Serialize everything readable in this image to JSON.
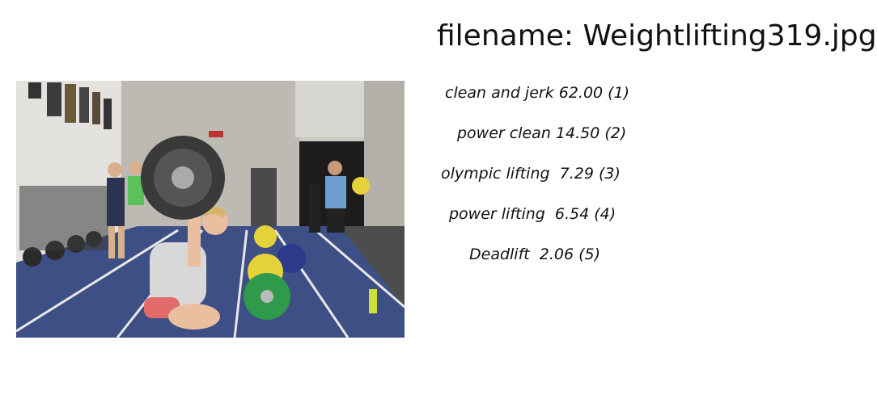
{
  "title": "filename: Weightlifting319.jpg",
  "image": {
    "subject": "weightlifting-photo"
  },
  "predictions": [
    {
      "text": "clean and jerk 62.00 (1)"
    },
    {
      "text": "power clean 14.50 (2)"
    },
    {
      "text": "olympic lifting  7.29 (3)"
    },
    {
      "text": "power lifting  6.54 (4)"
    },
    {
      "text": "Deadlift  2.06 (5)"
    }
  ]
}
